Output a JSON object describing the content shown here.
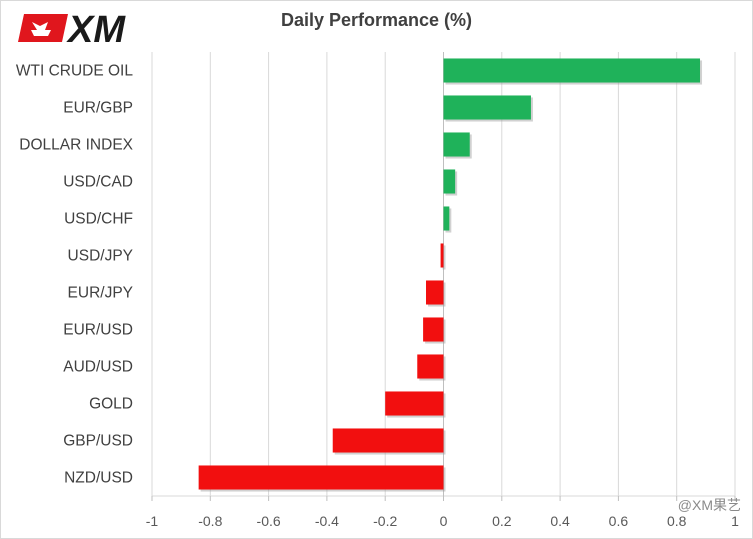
{
  "chart_data": {
    "type": "bar",
    "orientation": "horizontal",
    "title": "Daily Performance  (%)",
    "categories": [
      "WTI CRUDE OIL",
      "EUR/GBP",
      "DOLLAR INDEX",
      "USD/CAD",
      "USD/CHF",
      "USD/JPY",
      "EUR/JPY",
      "EUR/USD",
      "AUD/USD",
      "GOLD",
      "GBP/USD",
      "NZD/USD"
    ],
    "values": [
      0.88,
      0.3,
      0.09,
      0.04,
      0.02,
      -0.01,
      -0.06,
      -0.07,
      -0.09,
      -0.2,
      -0.38,
      -0.84
    ],
    "xlim": [
      -1,
      1
    ],
    "xticks": [
      -1,
      -0.8,
      -0.6,
      -0.4,
      -0.2,
      0,
      0.2,
      0.4,
      0.6,
      0.8,
      1
    ],
    "xtick_labels": [
      "-1",
      "-0.8",
      "-0.6",
      "-0.4",
      "-0.2",
      "0",
      "0.2",
      "0.4",
      "0.6",
      "0.8",
      "1"
    ],
    "grid": "vertical",
    "positive_color": "#1fb25a",
    "negative_color": "#f20f0f",
    "legend": "none"
  },
  "branding": {
    "logo_text": "XM",
    "logo_color": "#e0161d",
    "watermark": "@XM果艺"
  }
}
